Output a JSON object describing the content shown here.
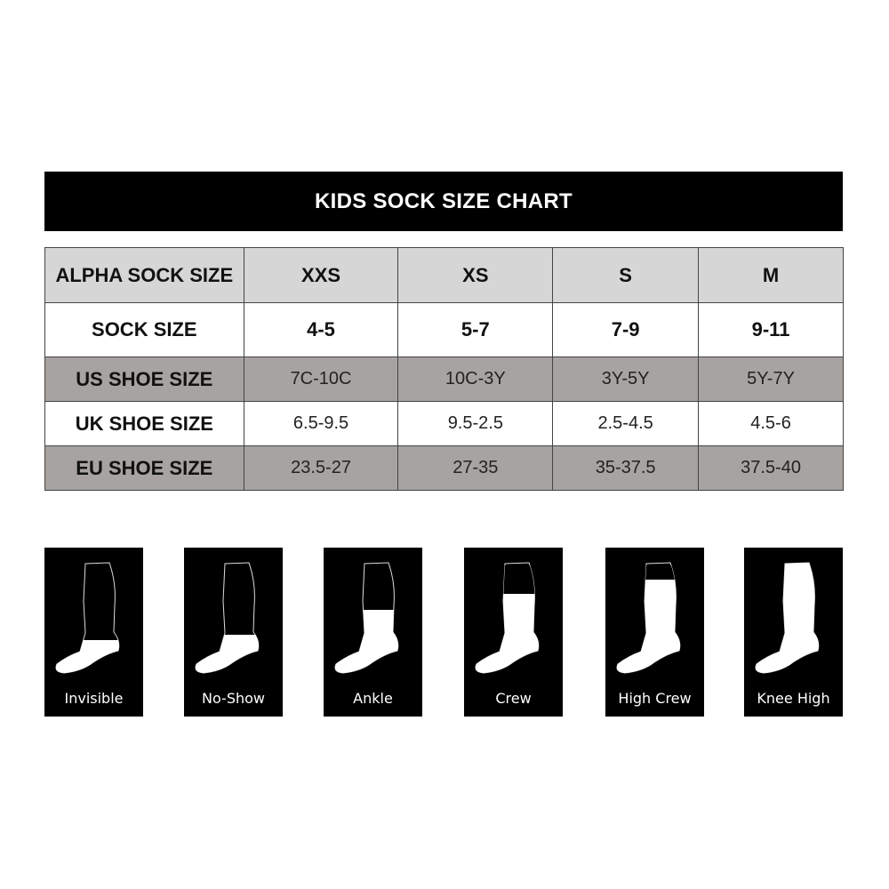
{
  "title": "KIDS SOCK SIZE CHART",
  "table": {
    "rows": [
      {
        "label": "ALPHA SOCK SIZE",
        "values": [
          "XXS",
          "XS",
          "S",
          "M"
        ]
      },
      {
        "label": "SOCK SIZE",
        "values": [
          "4-5",
          "5-7",
          "7-9",
          "9-11"
        ]
      },
      {
        "label": "US SHOE SIZE",
        "values": [
          "7C-10C",
          "10C-3Y",
          "3Y-5Y",
          "5Y-7Y"
        ]
      },
      {
        "label": "UK SHOE SIZE",
        "values": [
          "6.5-9.5",
          "9.5-2.5",
          "2.5-4.5",
          "4.5-6"
        ]
      },
      {
        "label": "EU SHOE SIZE",
        "values": [
          "23.5-27",
          "27-35",
          "35-37.5",
          "37.5-40"
        ]
      }
    ]
  },
  "sock_styles": [
    {
      "label": "Invisible",
      "icon": "invisible-sock-icon"
    },
    {
      "label": "No-Show",
      "icon": "no-show-sock-icon"
    },
    {
      "label": "Ankle",
      "icon": "ankle-sock-icon"
    },
    {
      "label": "Crew",
      "icon": "crew-sock-icon"
    },
    {
      "label": "High Crew",
      "icon": "high-crew-sock-icon"
    },
    {
      "label": "Knee High",
      "icon": "knee-high-sock-icon"
    }
  ],
  "colors": {
    "header_bg": "#000000",
    "row_light": "#d6d6d7",
    "row_dark": "#a7a3a0"
  }
}
